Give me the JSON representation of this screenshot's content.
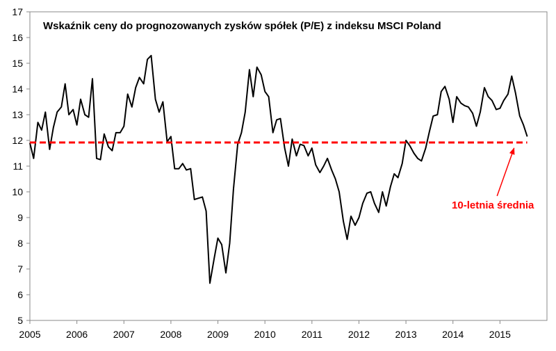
{
  "chart_data": {
    "type": "line",
    "title": "Wskaźnik ceny do prognozowanych zysków spółek (P/E) z indeksu MSCI Poland",
    "xlabel": "",
    "ylabel": "",
    "xlim": [
      2005,
      2016
    ],
    "ylim": [
      5,
      17
    ],
    "x_ticks": [
      "2005",
      "2006",
      "2007",
      "2008",
      "2009",
      "2010",
      "2011",
      "2012",
      "2013",
      "2014",
      "2015"
    ],
    "y_ticks": [
      "5",
      "6",
      "7",
      "8",
      "9",
      "10",
      "11",
      "12",
      "13",
      "14",
      "15",
      "16",
      "17"
    ],
    "grid": false,
    "series": [
      {
        "color": "#000000",
        "x": [
          2005.0,
          2005.08,
          2005.17,
          2005.25,
          2005.33,
          2005.42,
          2005.5,
          2005.58,
          2005.67,
          2005.75,
          2005.83,
          2005.92,
          2006.0,
          2006.08,
          2006.17,
          2006.25,
          2006.33,
          2006.42,
          2006.5,
          2006.58,
          2006.67,
          2006.75,
          2006.83,
          2006.92,
          2007.0,
          2007.08,
          2007.17,
          2007.25,
          2007.33,
          2007.42,
          2007.5,
          2007.58,
          2007.67,
          2007.75,
          2007.83,
          2007.92,
          2008.0,
          2008.08,
          2008.17,
          2008.25,
          2008.33,
          2008.42,
          2008.5,
          2008.58,
          2008.67,
          2008.75,
          2008.83,
          2008.92,
          2009.0,
          2009.08,
          2009.17,
          2009.25,
          2009.33,
          2009.42,
          2009.5,
          2009.58,
          2009.67,
          2009.75,
          2009.83,
          2009.92,
          2010.0,
          2010.08,
          2010.17,
          2010.25,
          2010.33,
          2010.42,
          2010.5,
          2010.58,
          2010.67,
          2010.75,
          2010.83,
          2010.92,
          2011.0,
          2011.08,
          2011.17,
          2011.25,
          2011.33,
          2011.42,
          2011.5,
          2011.58,
          2011.67,
          2011.75,
          2011.83,
          2011.92,
          2012.0,
          2012.08,
          2012.17,
          2012.25,
          2012.33,
          2012.42,
          2012.5,
          2012.58,
          2012.67,
          2012.75,
          2012.83,
          2012.92,
          2013.0,
          2013.08,
          2013.17,
          2013.25,
          2013.33,
          2013.42,
          2013.5,
          2013.58,
          2013.67,
          2013.75,
          2013.83,
          2013.92,
          2014.0,
          2014.08,
          2014.17,
          2014.25,
          2014.33,
          2014.42,
          2014.5,
          2014.58,
          2014.67,
          2014.75,
          2014.83,
          2014.92,
          2015.0,
          2015.08,
          2015.17,
          2015.25,
          2015.33,
          2015.42,
          2015.5,
          2015.58
        ],
        "values": [
          11.9,
          11.3,
          12.7,
          12.4,
          13.1,
          11.65,
          12.5,
          13.1,
          13.3,
          14.2,
          13.0,
          13.2,
          12.6,
          13.6,
          13.0,
          12.9,
          14.4,
          11.3,
          11.25,
          12.25,
          11.75,
          11.6,
          12.3,
          12.3,
          12.55,
          13.8,
          13.3,
          14.05,
          14.45,
          14.2,
          15.15,
          15.3,
          13.6,
          13.1,
          13.5,
          11.95,
          12.15,
          10.9,
          10.9,
          11.1,
          10.85,
          10.9,
          9.7,
          9.75,
          9.8,
          9.25,
          6.45,
          7.4,
          8.2,
          7.95,
          6.85,
          8.0,
          10.1,
          11.85,
          12.3,
          13.1,
          14.75,
          13.7,
          14.85,
          14.55,
          13.9,
          13.7,
          12.3,
          12.8,
          12.85,
          11.7,
          11.0,
          12.05,
          11.4,
          11.85,
          11.8,
          11.4,
          11.7,
          11.05,
          10.75,
          11.0,
          11.3,
          10.85,
          10.5,
          10.0,
          8.85,
          8.15,
          9.05,
          8.7,
          9.0,
          9.55,
          9.95,
          10.0,
          9.55,
          9.2,
          10.0,
          9.45,
          10.2,
          10.7,
          10.55,
          11.1,
          12.0,
          11.8,
          11.5,
          11.3,
          11.2,
          11.7,
          12.35,
          12.95,
          13.0,
          13.9,
          14.1,
          13.6,
          12.7,
          13.7,
          13.45,
          13.35,
          13.3,
          13.05,
          12.55,
          13.1,
          14.05,
          13.7,
          13.55,
          13.2,
          13.25,
          13.55,
          13.8,
          14.5,
          13.85,
          12.95,
          12.6,
          12.15
        ]
      },
      {
        "name": "10-letnia średnia",
        "color": "#ff0000",
        "dashed": true,
        "x": [
          2005.0,
          2015.58
        ],
        "values": [
          11.92,
          11.92
        ]
      }
    ],
    "annotations": [
      {
        "text": "10-letnia średnia",
        "color": "#ff0000",
        "x": 2014.85,
        "y": 9.35,
        "arrow_to": [
          2015.3,
          11.7
        ]
      }
    ]
  }
}
